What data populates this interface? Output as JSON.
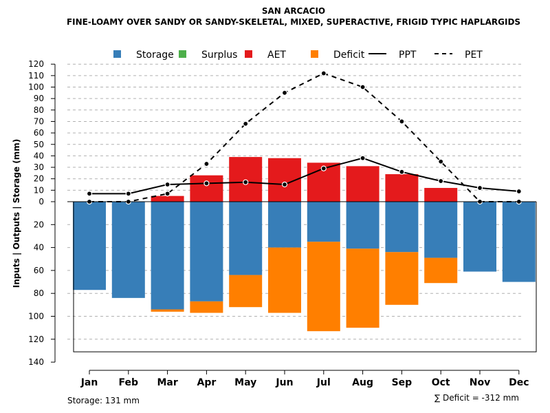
{
  "chart_data": {
    "type": "bar",
    "title": "SAN ARCACIO",
    "subtitle": "FINE-LOAMY OVER SANDY OR SANDY-SKELETAL, MIXED, SUPERACTIVE, FRIGID TYPIC HAPLARGIDS",
    "ylabel": "Inputs | Outputs | Storage    (mm)",
    "categories": [
      "Jan",
      "Feb",
      "Mar",
      "Apr",
      "May",
      "Jun",
      "Jul",
      "Aug",
      "Sep",
      "Oct",
      "Nov",
      "Dec"
    ],
    "y_ticks_above": [
      "0",
      "10",
      "20",
      "30",
      "40",
      "50",
      "60",
      "70",
      "80",
      "90",
      "100",
      "110",
      "120"
    ],
    "y_ticks_below": [
      "20",
      "40",
      "60",
      "80",
      "100",
      "120",
      "140"
    ],
    "ylim": [
      -140,
      120
    ],
    "legend": [
      {
        "name": "Storage",
        "kind": "square",
        "color": "#377EB8"
      },
      {
        "name": "Surplus",
        "kind": "square",
        "color": "#4DAF4A"
      },
      {
        "name": "AET",
        "kind": "square",
        "color": "#E41A1C"
      },
      {
        "name": "Deficit",
        "kind": "square",
        "color": "#FF7F00"
      },
      {
        "name": "PPT",
        "kind": "line-solid",
        "color": "#000000"
      },
      {
        "name": "PET",
        "kind": "line-dashed",
        "color": "#000000"
      }
    ],
    "series": [
      {
        "name": "AET",
        "color": "#E41A1C",
        "values": [
          0,
          0,
          5,
          23,
          39,
          38,
          34,
          31,
          24,
          12,
          0,
          0
        ]
      },
      {
        "name": "Storage",
        "color": "#377EB8",
        "values": [
          77,
          84,
          94,
          87,
          64,
          40,
          35,
          41,
          44,
          49,
          61,
          70
        ]
      },
      {
        "name": "Deficit",
        "color": "#FF7F00",
        "values": [
          0,
          0,
          2,
          10,
          28,
          57,
          78,
          69,
          46,
          22,
          0,
          0
        ]
      },
      {
        "name": "PPT",
        "color": "#000000",
        "values": [
          7,
          7,
          15,
          16,
          17,
          15,
          29,
          38,
          26,
          18,
          12,
          9
        ]
      },
      {
        "name": "PET",
        "color": "#000000",
        "values": [
          0,
          0,
          7,
          33,
          68,
          95,
          112,
          100,
          70,
          35,
          0,
          0
        ]
      }
    ],
    "storage_capacity": 131,
    "footer_left": "Storage: 131 mm",
    "footer_right": "∑ Deficit = -312 mm"
  }
}
